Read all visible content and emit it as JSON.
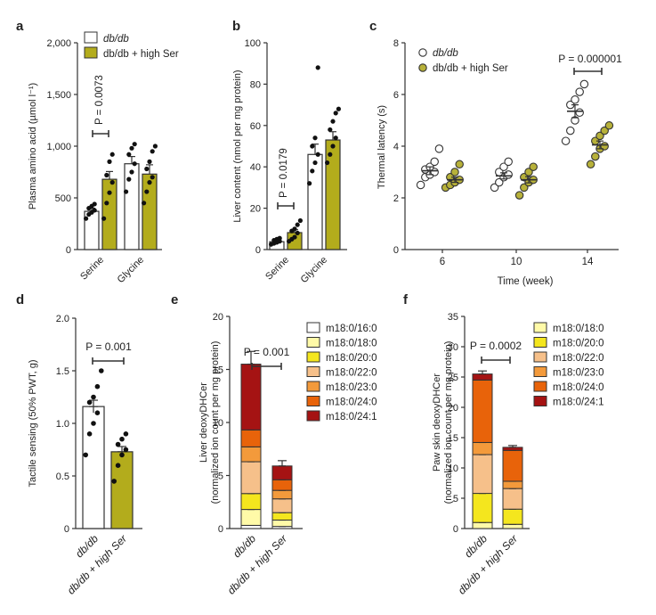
{
  "colors": {
    "db": "#ffffff",
    "ser": "#b3ac1c",
    "axis": "#333333",
    "point_db": "#ffffff",
    "point_ser": "#b7b13a"
  },
  "chart_data": [
    {
      "panel": "a",
      "type": "bar",
      "ylabel": "Plasma amino acid (µmol l⁻¹)",
      "ylim": [
        0,
        2000
      ],
      "yticks": [
        "0",
        "500",
        "1,000",
        "1,500",
        "2,000"
      ],
      "categories": [
        "Serine",
        "Glycine"
      ],
      "series": [
        {
          "name": "db/db",
          "values": [
            370,
            830
          ],
          "errors": [
            30,
            70
          ],
          "points": [
            [
              300,
              340,
              360,
              380,
              400,
              420,
              440
            ],
            [
              560,
              680,
              750,
              830,
              920,
              980,
              1020
            ]
          ]
        },
        {
          "name": "db/db + high Ser",
          "values": [
            680,
            730
          ],
          "errors": [
            75,
            90
          ],
          "points": [
            [
              300,
              450,
              550,
              650,
              720,
              850,
              920
            ],
            [
              450,
              560,
              650,
              700,
              780,
              850,
              950,
              1000
            ]
          ]
        }
      ],
      "legend": [
        "db/db",
        "db/db + high Ser"
      ],
      "annotation": "P = 0.0073"
    },
    {
      "panel": "b",
      "type": "bar",
      "ylabel": "Liver content (nmol per mg protein)",
      "ylim": [
        0,
        100
      ],
      "yticks": [
        "0",
        "20",
        "40",
        "60",
        "80",
        "100"
      ],
      "categories": [
        "Serine",
        "Glycine"
      ],
      "series": [
        {
          "name": "db/db",
          "values": [
            3.8,
            46
          ],
          "errors": [
            0.6,
            5
          ],
          "points": [
            [
              2.5,
              3,
              3.5,
              4,
              4.5,
              5,
              5.5
            ],
            [
              32,
              38,
              42,
              46,
              50,
              54,
              88
            ]
          ]
        },
        {
          "name": "db/db + high Ser",
          "values": [
            8.2,
            53
          ],
          "errors": [
            1.4,
            4
          ],
          "points": [
            [
              4,
              5,
              6,
              8,
              9,
              10,
              12,
              14
            ],
            [
              42,
              46,
              50,
              54,
              58,
              62,
              66,
              68
            ]
          ]
        }
      ],
      "annotation": "P = 0.0179"
    },
    {
      "panel": "c",
      "type": "scatter",
      "ylabel": "Thermal latency (s)",
      "xlabel": "Time (week)",
      "ylim": [
        0,
        8
      ],
      "yticks": [
        "0",
        "2",
        "4",
        "6",
        "8"
      ],
      "categories": [
        "6",
        "10",
        "14"
      ],
      "series": [
        {
          "name": "db/db",
          "means": [
            3.05,
            2.85,
            5.35
          ],
          "errors": [
            0.15,
            0.12,
            0.25
          ],
          "points": [
            [
              2.5,
              2.8,
              2.9,
              3.0,
              3.1,
              3.2,
              3.4,
              3.9
            ],
            [
              2.4,
              2.6,
              2.8,
              2.9,
              3.0,
              3.2,
              3.4
            ],
            [
              4.2,
              4.6,
              5.0,
              5.3,
              5.6,
              5.8,
              6.1,
              6.4
            ]
          ]
        },
        {
          "name": "db/db + high Ser",
          "means": [
            2.7,
            2.7,
            4.05
          ],
          "errors": [
            0.1,
            0.12,
            0.15
          ],
          "points": [
            [
              2.4,
              2.5,
              2.6,
              2.7,
              2.8,
              3.0,
              3.3
            ],
            [
              2.1,
              2.4,
              2.6,
              2.7,
              2.8,
              3.0,
              3.2
            ],
            [
              3.3,
              3.6,
              3.9,
              4.0,
              4.2,
              4.4,
              4.6,
              4.8
            ]
          ]
        }
      ],
      "legend": [
        "db/db",
        "db/db + high Ser"
      ],
      "annotation": "P = 0.000001"
    },
    {
      "panel": "d",
      "type": "bar",
      "ylabel": "Tactile sensing (50% PWT, g)",
      "ylim": [
        0,
        2.0
      ],
      "yticks": [
        "0",
        "0.5",
        "1.0",
        "1.5",
        "2.0"
      ],
      "categories": [
        "db/db",
        "db/db + high Ser"
      ],
      "values": [
        1.16,
        0.73
      ],
      "errors": [
        0.06,
        0.05
      ],
      "points": [
        [
          0.7,
          0.9,
          1.0,
          1.1,
          1.2,
          1.25,
          1.35,
          1.5
        ],
        [
          0.45,
          0.6,
          0.7,
          0.75,
          0.8,
          0.85,
          0.9
        ]
      ],
      "annotation": "P = 0.001"
    },
    {
      "panel": "e",
      "type": "bar",
      "ylabel": "Liver deoxyDHCer",
      "ylabel2": "(normalized ion count per mg protein)",
      "ylim": [
        0,
        20
      ],
      "yticks": [
        "0",
        "5",
        "10",
        "15",
        "20"
      ],
      "categories": [
        "db/db",
        "db/db + high Ser"
      ],
      "stack": [
        "m18:0/16:0",
        "m18:0/18:0",
        "m18:0/20:0",
        "m18:0/22:0",
        "m18:0/23:0",
        "m18:0/24:0",
        "m18:0/24:1"
      ],
      "values": [
        [
          0.3,
          1.5,
          1.5,
          3.0,
          1.4,
          1.6,
          6.2
        ],
        [
          0.2,
          0.6,
          0.7,
          1.3,
          0.8,
          1.0,
          1.3
        ]
      ],
      "totals_err": [
        1.2,
        0.5
      ],
      "annotation": "P = 0.001"
    },
    {
      "panel": "f",
      "type": "bar",
      "ylabel": "Paw skin deoxyDHCer",
      "ylabel2": "(normalized ion count per mg protein)",
      "ylim": [
        0,
        35
      ],
      "yticks": [
        "0",
        "5",
        "10",
        "15",
        "20",
        "25",
        "30",
        "35"
      ],
      "categories": [
        "db/db",
        "db/db + high Ser"
      ],
      "stack": [
        "m18:0/18:0",
        "m18:0/20:0",
        "m18:0/22:0",
        "m18:0/23:0",
        "m18:0/24:0",
        "m18:0/24:1"
      ],
      "values": [
        [
          1.0,
          4.8,
          6.4,
          2.0,
          10.3,
          1.0
        ],
        [
          0.7,
          2.5,
          3.4,
          1.2,
          5.1,
          0.5
        ]
      ],
      "totals_err": [
        0.5,
        0.3
      ],
      "annotation": "P = 0.0002"
    }
  ],
  "legend_colors_e": [
    "#ffffff",
    "#fffaa8",
    "#f4e61e",
    "#f6c08a",
    "#f39a3b",
    "#e8630a",
    "#a51313"
  ],
  "legend_colors_f": [
    "#fffaa8",
    "#f4e61e",
    "#f6c08a",
    "#f39a3b",
    "#e8630a",
    "#a51313"
  ]
}
